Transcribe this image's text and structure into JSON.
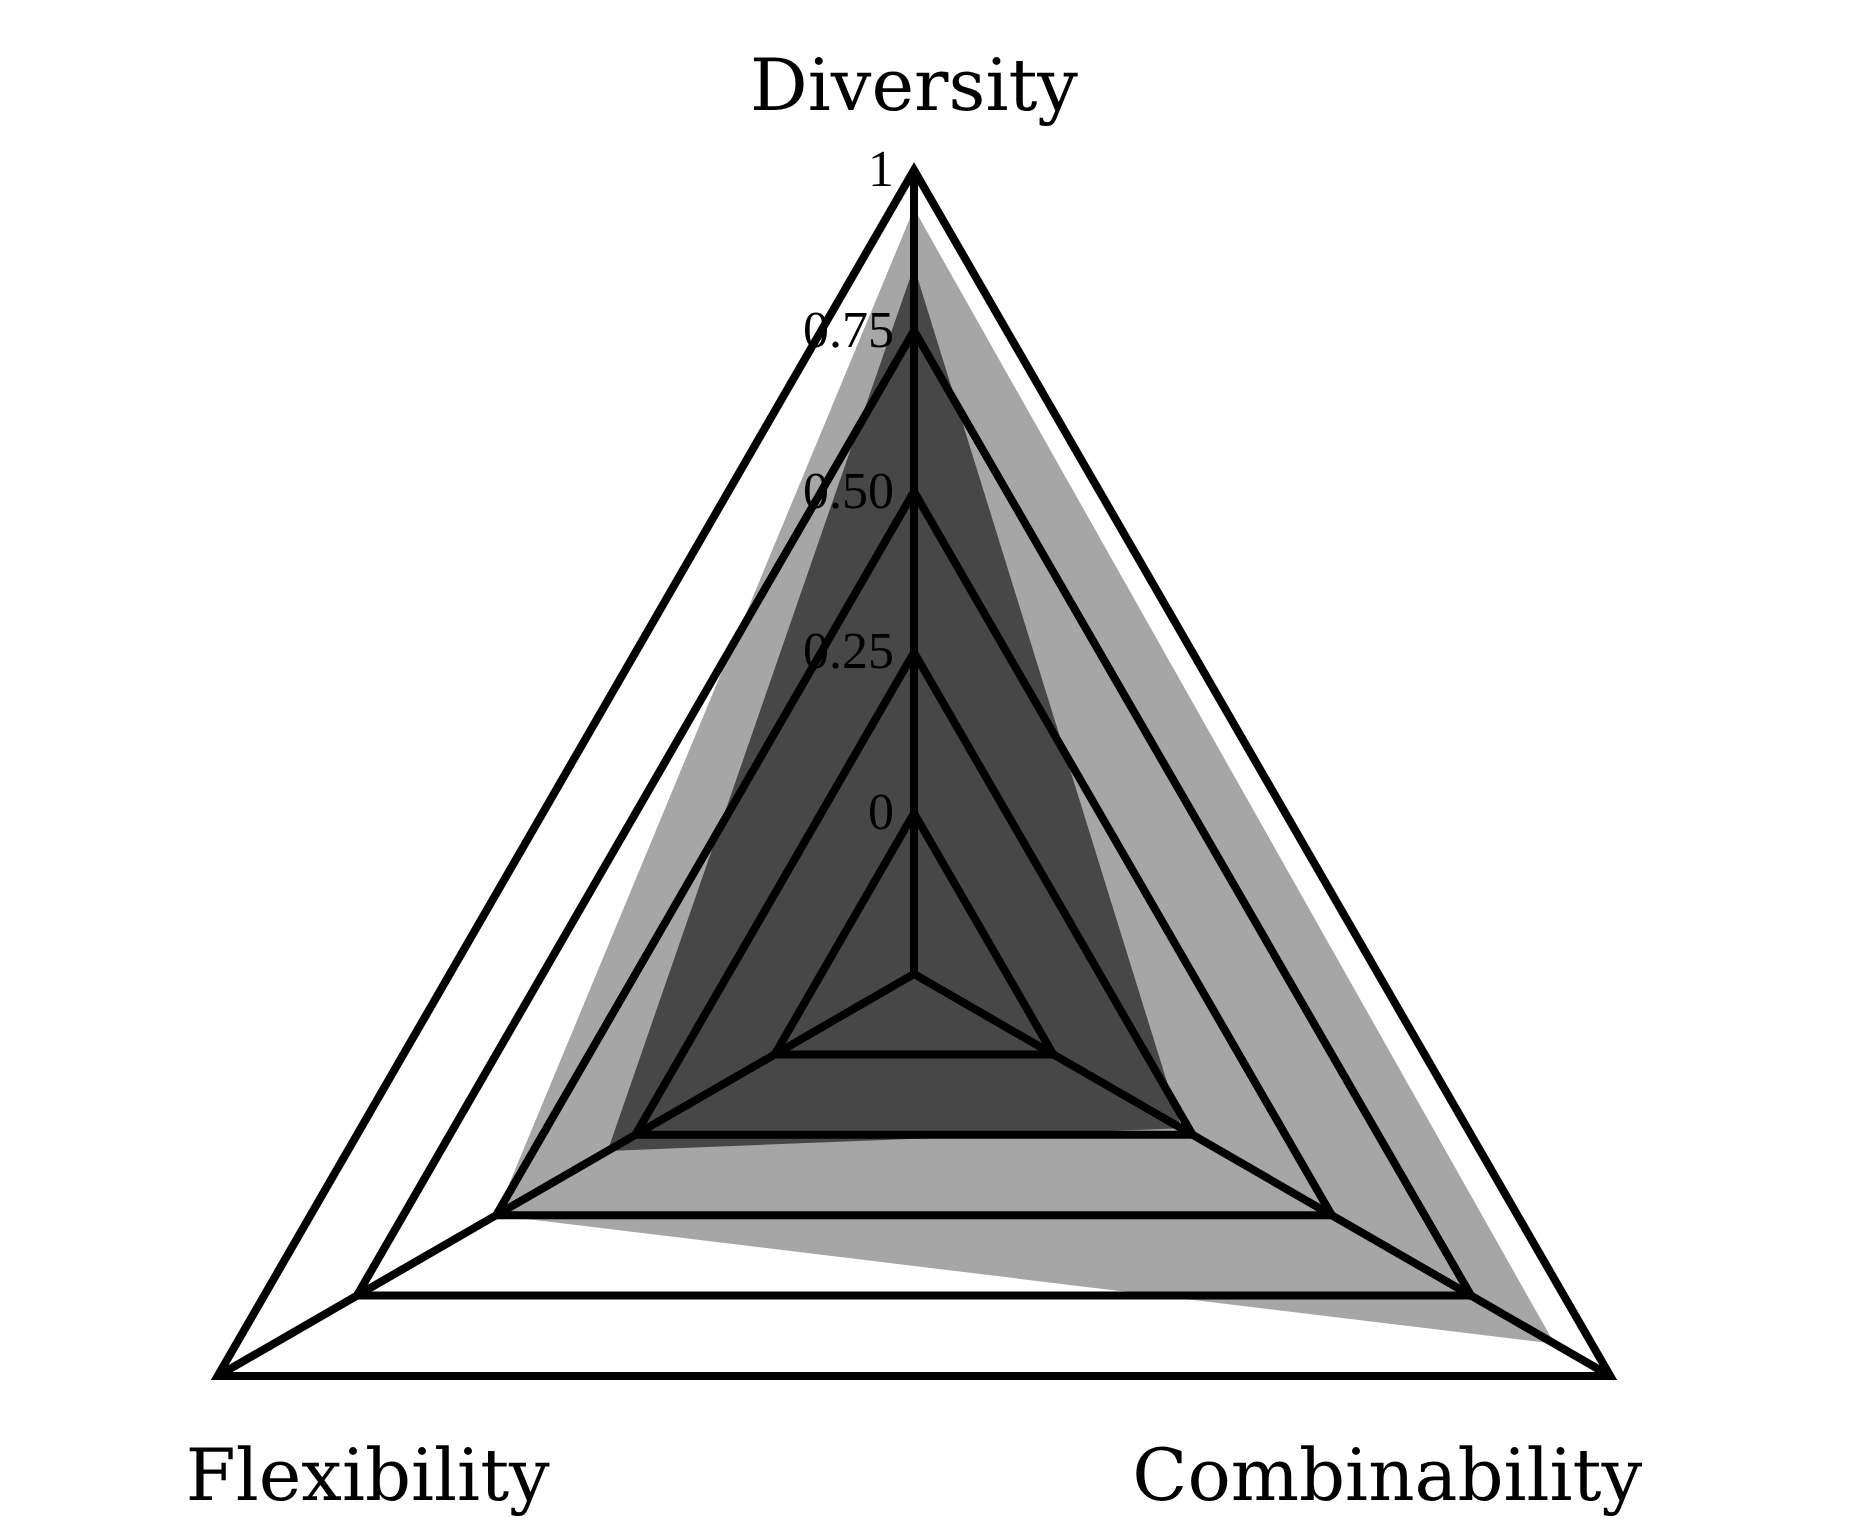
{
  "chart_data": {
    "type": "radar",
    "categories": [
      "Diversity",
      "Combinability",
      "Flexibility"
    ],
    "series": [
      {
        "color": "#a6a6a6",
        "values": [
          0.94,
          0.9,
          0.5
        ]
      },
      {
        "color": "#474747",
        "values": [
          0.85,
          0.23,
          0.3
        ]
      }
    ],
    "ylim": [
      -0.25,
      1
    ],
    "yticks": [
      0,
      {
        "value": 0.25,
        "label": "0.25"
      },
      {
        "value": 0.5,
        "label": "0.50"
      },
      0.75,
      1
    ],
    "grid": true
  }
}
